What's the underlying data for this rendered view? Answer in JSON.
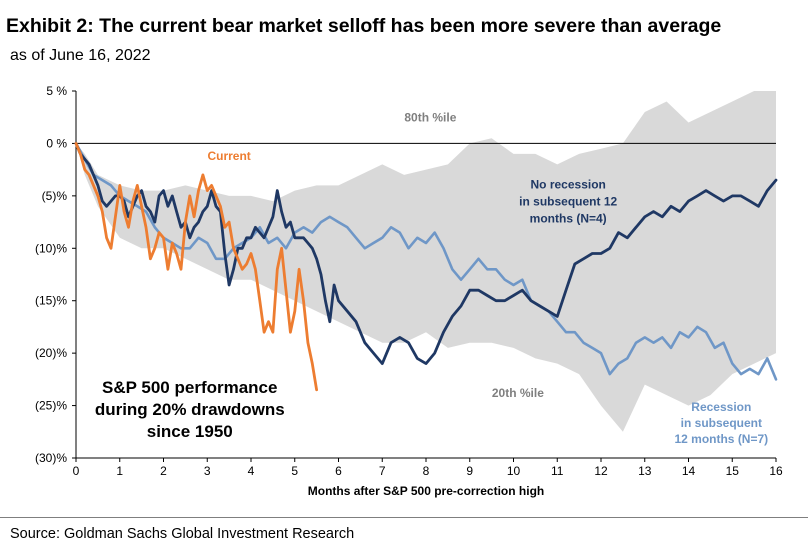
{
  "header": {
    "title": "Exhibit 2: The current bear market selloff has been more severe than average",
    "subtitle": "as of June 16, 2022"
  },
  "footer": {
    "source": "Source: Goldman Sachs Global Investment Research"
  },
  "chart_data": {
    "type": "line",
    "xlabel": "Months after S&P 500 pre-correction high",
    "ylabel": "",
    "xlim": [
      0,
      16
    ],
    "ylim": [
      -30,
      5
    ],
    "x_ticks": [
      "0",
      "1",
      "2",
      "3",
      "4",
      "5",
      "6",
      "7",
      "8",
      "9",
      "10",
      "11",
      "12",
      "13",
      "14",
      "15",
      "16"
    ],
    "y_ticks": [
      {
        "value": 5,
        "label": "5 %"
      },
      {
        "value": 0,
        "label": "0 %"
      },
      {
        "value": -5,
        "label": "(5)%"
      },
      {
        "value": -10,
        "label": "(10)%"
      },
      {
        "value": -15,
        "label": "(15)%"
      },
      {
        "value": -20,
        "label": "(20)%"
      },
      {
        "value": -25,
        "label": "(25)%"
      },
      {
        "value": -30,
        "label": "(30)%"
      }
    ],
    "colors": {
      "band": "#d9d9d9",
      "current": "#ed7d31",
      "no_recession": "#1f3864",
      "recession": "#6f97c7",
      "band_label": "#7f7f7f"
    },
    "band": {
      "upper": {
        "x": [
          0,
          0.2,
          0.5,
          1,
          1.5,
          2,
          2.5,
          3,
          3.5,
          4,
          4.5,
          5,
          5.5,
          6,
          6.5,
          7,
          7.5,
          8,
          8.5,
          9,
          9.5,
          10,
          10.5,
          11,
          11.5,
          12,
          12.5,
          13,
          13.5,
          14,
          14.5,
          15,
          15.5,
          16
        ],
        "y": [
          0,
          -1,
          -3,
          -4,
          -4.5,
          -4.5,
          -4,
          -4.5,
          -5,
          -5,
          -5.5,
          -4.5,
          -4,
          -4,
          -3,
          -2,
          -3,
          -2.5,
          -2,
          0,
          0.5,
          -1,
          -1,
          -2,
          -1,
          -0.5,
          0,
          3,
          4,
          2,
          3,
          4,
          5,
          5
        ]
      },
      "lower": {
        "x": [
          0,
          0.2,
          0.5,
          1,
          1.5,
          2,
          2.5,
          3,
          3.5,
          4,
          4.5,
          5,
          5.5,
          6,
          6.5,
          7,
          7.5,
          8,
          8.5,
          9,
          9.5,
          10,
          10.5,
          11,
          11.5,
          12,
          12.5,
          13,
          13.5,
          14,
          14.5,
          15,
          15.5,
          16
        ],
        "y": [
          0,
          -3,
          -6,
          -9,
          -10,
          -10,
          -11,
          -12,
          -13,
          -13,
          -14,
          -15,
          -16,
          -17,
          -18,
          -19,
          -19,
          -18,
          -19.5,
          -19,
          -19,
          -19.5,
          -20.5,
          -21,
          -22,
          -25,
          -27.5,
          -23,
          -24,
          -25,
          -24,
          -22,
          -21,
          -20
        ]
      },
      "upper_label": "80th %ile",
      "lower_label": "20th %ile"
    },
    "series": [
      {
        "name": "No recession in subsequent 12 months (N=4)",
        "label_lines": [
          "No recession",
          "in subsequent 12",
          "months (N=4)"
        ],
        "x": [
          0,
          0.1,
          0.2,
          0.3,
          0.4,
          0.5,
          0.6,
          0.7,
          0.8,
          0.9,
          1.0,
          1.1,
          1.2,
          1.3,
          1.4,
          1.5,
          1.6,
          1.7,
          1.8,
          1.9,
          2.0,
          2.1,
          2.2,
          2.3,
          2.4,
          2.5,
          2.6,
          2.7,
          2.8,
          2.9,
          3.0,
          3.1,
          3.2,
          3.3,
          3.4,
          3.5,
          3.6,
          3.7,
          3.8,
          3.9,
          4.0,
          4.1,
          4.2,
          4.3,
          4.4,
          4.5,
          4.6,
          4.7,
          4.8,
          4.9,
          5.0,
          5.1,
          5.2,
          5.3,
          5.4,
          5.5,
          5.6,
          5.7,
          5.8,
          5.9,
          6.0,
          6.2,
          6.4,
          6.6,
          6.8,
          7.0,
          7.2,
          7.4,
          7.6,
          7.8,
          8.0,
          8.2,
          8.4,
          8.6,
          8.8,
          9.0,
          9.2,
          9.4,
          9.6,
          9.8,
          10.0,
          10.2,
          10.4,
          10.6,
          10.8,
          11.0,
          11.2,
          11.4,
          11.6,
          11.8,
          12.0,
          12.2,
          12.4,
          12.6,
          12.8,
          13.0,
          13.2,
          13.4,
          13.6,
          13.8,
          14.0,
          14.2,
          14.4,
          14.6,
          14.8,
          15.0,
          15.2,
          15.4,
          15.6,
          15.8,
          16.0
        ],
        "y": [
          0,
          -1,
          -1.5,
          -2,
          -3,
          -4,
          -5.5,
          -6,
          -5.5,
          -5,
          -5,
          -5.5,
          -7,
          -6,
          -5,
          -4.5,
          -6,
          -6.5,
          -7.5,
          -5,
          -4.5,
          -6,
          -5,
          -6.5,
          -8,
          -7.5,
          -9,
          -8,
          -7.5,
          -6.5,
          -6,
          -4.5,
          -6,
          -6.5,
          -10.5,
          -13.5,
          -12,
          -10,
          -10,
          -9,
          -9,
          -8,
          -8.5,
          -9,
          -8,
          -7,
          -4.5,
          -6.5,
          -8,
          -7.5,
          -9,
          -9,
          -9,
          -9.5,
          -10,
          -11,
          -12.5,
          -15,
          -17,
          -13.5,
          -15,
          -16,
          -17,
          -19,
          -20,
          -21,
          -19,
          -18.5,
          -19,
          -20.5,
          -21,
          -20,
          -18,
          -16.5,
          -15.5,
          -14,
          -14,
          -14.5,
          -15,
          -15,
          -14.5,
          -14,
          -15,
          -15.5,
          -16,
          -16.5,
          -14,
          -11.5,
          -11,
          -10.5,
          -10.5,
          -10,
          -8.5,
          -9,
          -8,
          -7,
          -6.5,
          -7,
          -6,
          -6.5,
          -5.5,
          -5,
          -4.5,
          -5,
          -5.5,
          -5,
          -5,
          -5.5,
          -6,
          -4.5,
          -3.5
        ]
      },
      {
        "name": "Recession in subsequent 12 months (N=7)",
        "label_lines": [
          "Recession",
          "in subsequent",
          "12 months (N=7)"
        ],
        "x": [
          0,
          0.2,
          0.4,
          0.6,
          0.8,
          1.0,
          1.2,
          1.4,
          1.6,
          1.8,
          2.0,
          2.2,
          2.4,
          2.6,
          2.8,
          3.0,
          3.2,
          3.4,
          3.6,
          3.8,
          4.0,
          4.2,
          4.4,
          4.6,
          4.8,
          5.0,
          5.2,
          5.4,
          5.6,
          5.8,
          6.0,
          6.2,
          6.4,
          6.6,
          6.8,
          7.0,
          7.2,
          7.4,
          7.6,
          7.8,
          8.0,
          8.2,
          8.4,
          8.6,
          8.8,
          9.0,
          9.2,
          9.4,
          9.6,
          9.8,
          10.0,
          10.2,
          10.4,
          10.6,
          10.8,
          11.0,
          11.2,
          11.4,
          11.6,
          11.8,
          12.0,
          12.2,
          12.4,
          12.6,
          12.8,
          13.0,
          13.2,
          13.4,
          13.6,
          13.8,
          14.0,
          14.2,
          14.4,
          14.6,
          14.8,
          15.0,
          15.2,
          15.4,
          15.6,
          15.8,
          16.0
        ],
        "y": [
          0,
          -1.5,
          -3,
          -3.5,
          -4,
          -5,
          -5.5,
          -6,
          -6.5,
          -8,
          -9,
          -9.5,
          -10,
          -10,
          -9,
          -9.5,
          -11,
          -11,
          -10,
          -9.5,
          -9,
          -8,
          -9.5,
          -9,
          -10,
          -8.5,
          -8,
          -8.5,
          -7.5,
          -7,
          -7.5,
          -8,
          -9,
          -10,
          -9.5,
          -9,
          -8,
          -8.5,
          -10,
          -9,
          -9.5,
          -8.5,
          -10,
          -12,
          -13,
          -12,
          -11,
          -12,
          -12,
          -13,
          -13.5,
          -13,
          -15,
          -15.5,
          -16,
          -17,
          -18,
          -18,
          -19,
          -19.5,
          -20,
          -22,
          -21,
          -20.5,
          -19,
          -18.5,
          -19,
          -18.5,
          -19.5,
          -18,
          -18.5,
          -17.5,
          -18,
          -19.5,
          -19,
          -21,
          -22,
          -21.5,
          -22,
          -20.5,
          -22.5
        ]
      },
      {
        "name": "Current",
        "label_lines": [
          "Current"
        ],
        "x": [
          0,
          0.1,
          0.2,
          0.3,
          0.4,
          0.5,
          0.6,
          0.7,
          0.8,
          0.9,
          1.0,
          1.1,
          1.2,
          1.3,
          1.4,
          1.5,
          1.6,
          1.7,
          1.8,
          1.9,
          2.0,
          2.1,
          2.2,
          2.3,
          2.4,
          2.5,
          2.6,
          2.7,
          2.8,
          2.9,
          3.0,
          3.1,
          3.2,
          3.3,
          3.4,
          3.5,
          3.6,
          3.7,
          3.8,
          3.9,
          4.0,
          4.1,
          4.2,
          4.3,
          4.4,
          4.5,
          4.6,
          4.7,
          4.8,
          4.9,
          5.0,
          5.1,
          5.2,
          5.3,
          5.4,
          5.5
        ],
        "y": [
          0,
          -1,
          -2.5,
          -3,
          -4,
          -5,
          -6.5,
          -9,
          -10,
          -7,
          -4,
          -6.5,
          -8,
          -5.5,
          -4,
          -6,
          -8,
          -11,
          -10,
          -8.5,
          -9,
          -12,
          -9.5,
          -10.5,
          -12,
          -7.5,
          -5,
          -7,
          -4.5,
          -3,
          -4.5,
          -4,
          -5,
          -6,
          -8,
          -7.5,
          -10,
          -11,
          -12,
          -11.5,
          -10.5,
          -12,
          -15,
          -18,
          -17,
          -18,
          -12,
          -10,
          -14,
          -18,
          -16,
          -12,
          -15,
          -19,
          -21,
          -23.5
        ]
      }
    ],
    "annotation": [
      "S&P 500 performance",
      "during 20% drawdowns",
      "since 1950"
    ],
    "grid": false,
    "legend": "none"
  }
}
